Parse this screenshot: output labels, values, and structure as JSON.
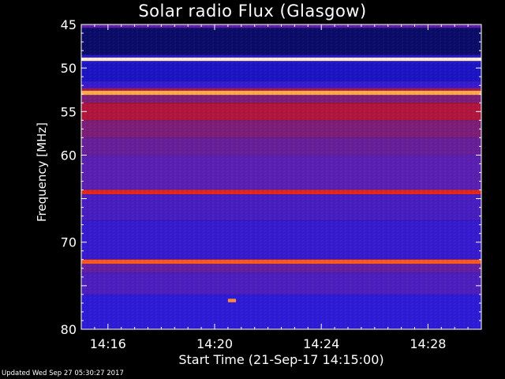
{
  "chart_data": {
    "type": "heatmap",
    "title": "Solar radio Flux (Glasgow)",
    "xlabel": "Start Time (21-Sep-17 14:15:00)",
    "ylabel": "Frequency [MHz]",
    "xticks": [
      "14:16",
      "14:20",
      "14:24",
      "14:28"
    ],
    "yticks": [
      45,
      50,
      55,
      60,
      65,
      70,
      75,
      80
    ],
    "ytick_labels": [
      "45",
      "50",
      "55",
      "60",
      "",
      "70",
      "",
      "80"
    ],
    "ylim": [
      45,
      80
    ],
    "xlim_minutes": [
      0,
      15
    ],
    "xtick_minutes": [
      1,
      5,
      9,
      13
    ],
    "colormap": [
      "#080840",
      "#1010b0",
      "#2a1ad8",
      "#5a1fb0",
      "#7a1e7a",
      "#a01850",
      "#c81020",
      "#ff4010",
      "#ffb050",
      "#fff8e0"
    ],
    "bands": [
      {
        "freq_start": 45.0,
        "freq_end": 45.4,
        "level": 0.35
      },
      {
        "freq_start": 45.4,
        "freq_end": 48.5,
        "level": 0.04
      },
      {
        "freq_start": 48.5,
        "freq_end": 48.8,
        "level": 0.2
      },
      {
        "freq_start": 48.8,
        "freq_end": 49.2,
        "level": 0.98
      },
      {
        "freq_start": 49.2,
        "freq_end": 49.5,
        "level": 0.2
      },
      {
        "freq_start": 49.5,
        "freq_end": 51.5,
        "level": 0.16
      },
      {
        "freq_start": 51.5,
        "freq_end": 52.3,
        "level": 0.25
      },
      {
        "freq_start": 52.3,
        "freq_end": 52.6,
        "level": 0.55
      },
      {
        "freq_start": 52.6,
        "freq_end": 53.1,
        "level": 0.88
      },
      {
        "freq_start": 53.1,
        "freq_end": 54.0,
        "level": 0.45
      },
      {
        "freq_start": 54.0,
        "freq_end": 56.0,
        "level": 0.6
      },
      {
        "freq_start": 56.0,
        "freq_end": 58.0,
        "level": 0.45
      },
      {
        "freq_start": 58.0,
        "freq_end": 60.0,
        "level": 0.38
      },
      {
        "freq_start": 60.0,
        "freq_end": 64.0,
        "level": 0.33
      },
      {
        "freq_start": 64.0,
        "freq_end": 64.5,
        "level": 0.72
      },
      {
        "freq_start": 64.5,
        "freq_end": 67.5,
        "level": 0.29
      },
      {
        "freq_start": 67.5,
        "freq_end": 72.0,
        "level": 0.25
      },
      {
        "freq_start": 72.0,
        "freq_end": 72.5,
        "level": 0.8
      },
      {
        "freq_start": 72.5,
        "freq_end": 73.5,
        "level": 0.36
      },
      {
        "freq_start": 73.5,
        "freq_end": 76.0,
        "level": 0.3
      },
      {
        "freq_start": 76.0,
        "freq_end": 80.0,
        "level": 0.23
      }
    ],
    "burst": {
      "freq_start": 76.5,
      "freq_end": 76.9,
      "minute_start": 5.5,
      "minute_end": 5.8,
      "level": 0.85
    }
  },
  "footer": "Updated Wed Sep 27 05:30:27 2017"
}
